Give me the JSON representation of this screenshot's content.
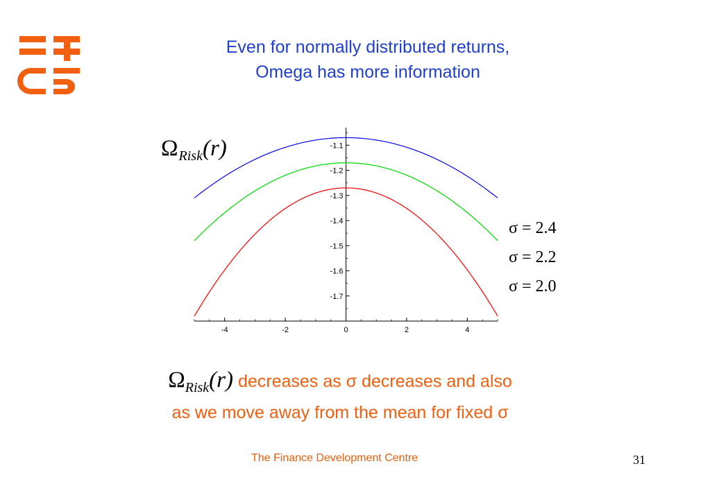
{
  "title": {
    "line1": "Even for normally distributed returns,",
    "line2": "Omega has more information"
  },
  "logo": {
    "text": "TFDC",
    "color": "#f06010"
  },
  "omega_label": {
    "symbol": "Ω",
    "subscript": "Risk",
    "arg": "(r)"
  },
  "legend": [
    {
      "text": "σ = 2.4",
      "color": "#0000ff"
    },
    {
      "text": "σ = 2.2",
      "color": "#00dd00"
    },
    {
      "text": "σ = 2.0",
      "color": "#ff0000"
    }
  ],
  "caption": {
    "omega_symbol": "Ω",
    "omega_subscript": "Risk",
    "omega_arg": "(r)",
    "line1": "decreases as σ decreases and also",
    "line2": "as we move away from the mean for fixed σ"
  },
  "footer": "The Finance Development Centre",
  "page_number": "31",
  "chart_data": {
    "type": "line",
    "xlim": [
      -5,
      5
    ],
    "ylim": [
      -1.8,
      -1.03
    ],
    "x_ticks": [
      -4,
      -2,
      0,
      2,
      4
    ],
    "y_ticks": [
      -1.1,
      -1.2,
      -1.3,
      -1.4,
      -1.5,
      -1.6,
      -1.7
    ],
    "x_tick_labels": [
      "-4",
      "-2",
      "0",
      "2",
      "4"
    ],
    "y_tick_labels": [
      "-1.1",
      "-1.2",
      "-1.3",
      "-1.4",
      "-1.5",
      "-1.6",
      "-1.7"
    ],
    "x": [
      -5,
      -4,
      -3,
      -2,
      -1,
      0,
      1,
      2,
      3,
      4,
      5
    ],
    "series": [
      {
        "name": "σ = 2.4",
        "color": "#0000ff",
        "values": [
          -1.31,
          -1.22,
          -1.16,
          -1.11,
          -1.08,
          -1.07,
          -1.08,
          -1.11,
          -1.16,
          -1.22,
          -1.31
        ]
      },
      {
        "name": "σ = 2.2",
        "color": "#00dd00",
        "values": [
          -1.48,
          -1.38,
          -1.29,
          -1.22,
          -1.18,
          -1.17,
          -1.18,
          -1.22,
          -1.29,
          -1.38,
          -1.48
        ]
      },
      {
        "name": "σ = 2.0",
        "color": "#ff0000",
        "values": [
          -1.78,
          -1.62,
          -1.48,
          -1.37,
          -1.3,
          -1.27,
          -1.3,
          -1.37,
          -1.48,
          -1.62,
          -1.78
        ]
      }
    ]
  }
}
